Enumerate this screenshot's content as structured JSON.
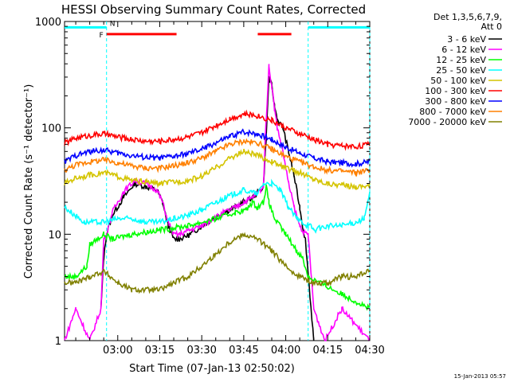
{
  "chart_data": {
    "type": "line",
    "title": "HESSI Observing Summary Count Rates, Corrected",
    "xlabel": "Start Time (07-Jan-13 02:50:02)",
    "ylabel": "Corrected Count Rate (s⁻¹ detector⁻¹)",
    "xlim_minutes": [
      -9,
      100
    ],
    "ylim": [
      1,
      1000
    ],
    "yscale": "log",
    "xtick_minutes": [
      10,
      25,
      40,
      55,
      70,
      85,
      100
    ],
    "xtick_labels": [
      "03:00",
      "03:15",
      "03:30",
      "03:45",
      "04:00",
      "04:15",
      "04:30"
    ],
    "ytick_values": [
      1,
      10,
      100,
      1000
    ],
    "ytick_labels": [
      "1",
      "10",
      "100",
      "1000"
    ],
    "legend": {
      "header": [
        "Det 1,3,5,6,7,9,",
        "Att 0"
      ],
      "placement": "right"
    },
    "series": [
      {
        "name": "3 - 6 keV",
        "color": "#000000",
        "x": [
          -9,
          -2,
          4,
          5,
          6,
          8,
          12,
          16,
          20,
          24,
          26,
          28,
          30,
          32,
          36,
          40,
          44,
          48,
          52,
          55,
          58,
          62,
          63,
          64,
          65,
          66,
          67,
          69,
          71,
          73,
          75,
          76,
          77,
          80,
          84,
          100
        ],
        "y": [
          null,
          null,
          2,
          6,
          10,
          15,
          22,
          30,
          28,
          26,
          20,
          12,
          9,
          9,
          10,
          12,
          14,
          16,
          18,
          20,
          22,
          28,
          80,
          300,
          250,
          160,
          120,
          100,
          60,
          35,
          18,
          12,
          9,
          1,
          null,
          null
        ]
      },
      {
        "name": "6 - 12 keV",
        "color": "#ff00ff",
        "x": [
          -9,
          -5,
          0,
          4,
          5,
          6,
          8,
          12,
          16,
          20,
          24,
          26,
          28,
          30,
          32,
          36,
          40,
          44,
          48,
          52,
          55,
          58,
          62,
          63,
          64,
          65,
          66,
          67,
          69,
          71,
          73,
          75,
          77,
          78,
          80,
          84,
          90,
          100
        ],
        "y": [
          1,
          2,
          1,
          2,
          9,
          10,
          16,
          25,
          32,
          30,
          26,
          20,
          13,
          10,
          10,
          11,
          12,
          14,
          16,
          18,
          20,
          22,
          28,
          120,
          380,
          250,
          150,
          100,
          60,
          30,
          18,
          12,
          10,
          10,
          2,
          1,
          2,
          1
        ]
      },
      {
        "name": "12 - 25 keV",
        "color": "#00ff00",
        "x": [
          -9,
          -5,
          -1,
          0,
          5,
          8,
          15,
          25,
          35,
          45,
          52,
          56,
          58,
          60,
          62,
          63,
          64,
          66,
          70,
          74,
          76,
          78,
          100
        ],
        "y": [
          4,
          4,
          5,
          8,
          10,
          9,
          10,
          11,
          12,
          14,
          16,
          17,
          20,
          18,
          20,
          28,
          20,
          14,
          10,
          7,
          6,
          4,
          2
        ]
      },
      {
        "name": "25 - 50 keV",
        "color": "#00ffff",
        "x": [
          -9,
          -2,
          5,
          10,
          15,
          20,
          25,
          30,
          35,
          40,
          45,
          50,
          55,
          60,
          62,
          65,
          68,
          71,
          74,
          76,
          78,
          79,
          80,
          85,
          90,
          95,
          98,
          100
        ],
        "y": [
          18,
          13,
          13,
          14,
          14,
          13,
          13,
          14,
          15,
          17,
          20,
          23,
          26,
          24,
          30,
          30,
          26,
          18,
          14,
          13,
          12,
          12,
          11,
          12,
          12,
          13,
          14,
          24
        ]
      },
      {
        "name": "50 - 100 keV",
        "color": "#d4c400",
        "x": [
          -9,
          -5,
          0,
          5,
          10,
          15,
          20,
          25,
          30,
          35,
          40,
          45,
          50,
          55,
          60,
          65,
          70,
          75,
          80,
          85,
          90,
          95,
          100
        ],
        "y": [
          30,
          34,
          36,
          38,
          35,
          32,
          31,
          30,
          31,
          32,
          35,
          42,
          52,
          60,
          55,
          48,
          42,
          38,
          33,
          30,
          29,
          28,
          29
        ]
      },
      {
        "name": "100 - 300 keV",
        "color": "#ff0000",
        "x": [
          -9,
          -5,
          0,
          5,
          10,
          15,
          20,
          25,
          30,
          35,
          40,
          45,
          50,
          55,
          60,
          65,
          70,
          75,
          80,
          85,
          90,
          95,
          100
        ],
        "y": [
          72,
          80,
          85,
          88,
          82,
          78,
          75,
          75,
          78,
          82,
          90,
          105,
          122,
          135,
          130,
          118,
          100,
          88,
          78,
          70,
          68,
          67,
          70
        ]
      },
      {
        "name": "300 - 800 keV",
        "color": "#0000ff",
        "x": [
          -9,
          -5,
          0,
          5,
          10,
          15,
          20,
          25,
          30,
          35,
          40,
          45,
          50,
          55,
          60,
          65,
          70,
          75,
          80,
          85,
          90,
          95,
          100
        ],
        "y": [
          48,
          55,
          60,
          62,
          58,
          55,
          53,
          52,
          54,
          57,
          63,
          72,
          83,
          92,
          88,
          78,
          66,
          58,
          52,
          48,
          47,
          46,
          48
        ]
      },
      {
        "name": "800 - 7000 keV",
        "color": "#ff8000",
        "x": [
          -9,
          -5,
          0,
          5,
          10,
          15,
          20,
          25,
          30,
          35,
          40,
          45,
          50,
          55,
          60,
          65,
          70,
          75,
          80,
          85,
          90,
          95,
          100
        ],
        "y": [
          40,
          45,
          48,
          50,
          47,
          44,
          42,
          42,
          44,
          47,
          52,
          60,
          70,
          75,
          72,
          63,
          54,
          48,
          43,
          40,
          39,
          38,
          40
        ]
      },
      {
        "name": "7000 - 20000 keV",
        "color": "#808000",
        "x": [
          -9,
          -5,
          0,
          5,
          10,
          15,
          20,
          25,
          30,
          35,
          40,
          45,
          50,
          55,
          60,
          65,
          70,
          75,
          80,
          85,
          90,
          95,
          100
        ],
        "y": [
          3.5,
          3.5,
          4,
          4.5,
          3.5,
          3,
          3,
          3,
          3.5,
          4,
          5,
          6.5,
          8.5,
          10,
          9,
          7,
          5,
          4,
          3.5,
          3.5,
          4,
          4,
          4.5
        ]
      }
    ],
    "flags": [
      {
        "label": "",
        "color": "#00ffff",
        "y": 880,
        "from_minutes": -9,
        "to_minutes": 6
      },
      {
        "label": "",
        "color": "#00ffff",
        "y": 880,
        "from_minutes": 78,
        "to_minutes": 100
      },
      {
        "label": "F",
        "color": "#ff0000",
        "y": 760,
        "from_minutes": 6,
        "to_minutes": 31
      },
      {
        "label": "",
        "color": "#ff0000",
        "y": 760,
        "from_minutes": 60,
        "to_minutes": 72
      },
      {
        "label": "N",
        "color": "#00aaff",
        "y": 880,
        "from_minutes": 6,
        "to_minutes": 6
      }
    ],
    "time_markers_minutes": [
      6,
      78,
      100
    ],
    "footer_timestamp": "15-Jan-2013 05:57"
  }
}
